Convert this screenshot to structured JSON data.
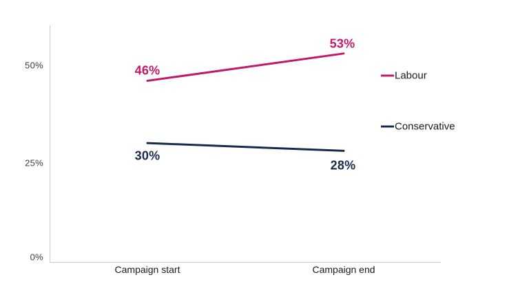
{
  "chart_data": {
    "type": "line",
    "title": "",
    "xlabel": "",
    "ylabel": "",
    "categories": [
      "Campaign start",
      "Campaign end"
    ],
    "series": [
      {
        "name": "Labour",
        "values": [
          46,
          53
        ],
        "labels": [
          "46%",
          "53%"
        ],
        "color": "#c2186b"
      },
      {
        "name": "Conservative",
        "values": [
          30,
          28
        ],
        "labels": [
          "30%",
          "28%"
        ],
        "color": "#172a4d"
      }
    ],
    "yticks": [
      0,
      25,
      50
    ],
    "ytick_labels": [
      "0%",
      "25%",
      "50%"
    ],
    "ylim": [
      0,
      60
    ],
    "grid": false,
    "legend_position": "right",
    "axis_color": "#c9c9c9",
    "tick_label_color": "#3d3d3d",
    "category_label_color": "#1a1a1a",
    "legend_text_color": "#1a1a1a"
  }
}
